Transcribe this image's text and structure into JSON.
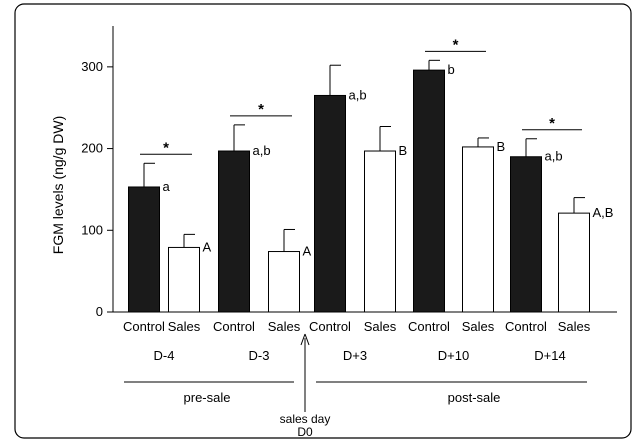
{
  "chart_data": {
    "type": "bar",
    "title": "",
    "ylabel": "FGM levels (ng/g DW)",
    "xlabel": "",
    "ylim": [
      0,
      350
    ],
    "yticks": [
      0,
      100,
      200,
      300
    ],
    "grid": false,
    "legend": "none",
    "colors": {
      "control": "#1a1a1a",
      "sales": "#ffffff",
      "stroke": "#000000"
    },
    "groups": [
      {
        "label": "D-4",
        "bars": [
          {
            "category": "Control",
            "value": 153,
            "error": 29,
            "letter": "a"
          },
          {
            "category": "Sales",
            "value": 79,
            "error": 16,
            "letter": "A"
          }
        ]
      },
      {
        "label": "D-3",
        "bars": [
          {
            "category": "Control",
            "value": 197,
            "error": 32,
            "letter": "a,b"
          },
          {
            "category": "Sales",
            "value": 74,
            "error": 27,
            "letter": "A"
          }
        ]
      },
      {
        "label": "D+3",
        "bars": [
          {
            "category": "Control",
            "value": 265,
            "error": 37,
            "letter": "a,b"
          },
          {
            "category": "Sales",
            "value": 197,
            "error": 30,
            "letter": "B"
          }
        ]
      },
      {
        "label": "D+10",
        "bars": [
          {
            "category": "Control",
            "value": 296,
            "error": 12,
            "letter": "b"
          },
          {
            "category": "Sales",
            "value": 202,
            "error": 11,
            "letter": "B"
          }
        ]
      },
      {
        "label": "D+14",
        "bars": [
          {
            "category": "Control",
            "value": 190,
            "error": 22,
            "letter": "a,b"
          },
          {
            "category": "Sales",
            "value": 121,
            "error": 19,
            "letter": "A,B"
          }
        ]
      }
    ],
    "significance": [
      {
        "group": "D-4",
        "marker": "*"
      },
      {
        "group": "D-3",
        "marker": "*"
      },
      {
        "group": "D+10",
        "marker": "*"
      },
      {
        "group": "D+14",
        "marker": "*"
      }
    ],
    "periods": {
      "pre": "pre-sale",
      "post": "post-sale"
    },
    "sales_day": {
      "line1": "sales day",
      "line2": "D0"
    }
  }
}
